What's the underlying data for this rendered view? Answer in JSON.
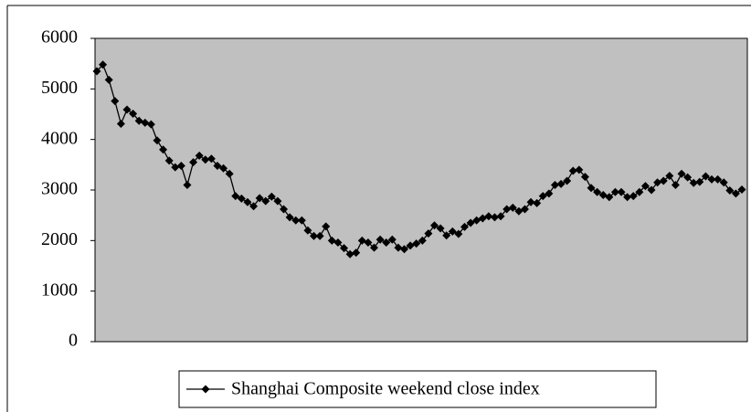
{
  "chart_data": {
    "type": "line",
    "series": [
      {
        "name": "Shanghai Composite weekend close index",
        "color": "#000000",
        "values": [
          5350,
          5480,
          5180,
          4760,
          4310,
          4590,
          4510,
          4370,
          4330,
          4300,
          3980,
          3800,
          3580,
          3450,
          3480,
          3100,
          3550,
          3680,
          3600,
          3620,
          3480,
          3430,
          3320,
          2880,
          2830,
          2760,
          2680,
          2840,
          2780,
          2870,
          2780,
          2620,
          2460,
          2400,
          2400,
          2200,
          2090,
          2090,
          2280,
          2000,
          1960,
          1850,
          1730,
          1760,
          2000,
          1960,
          1860,
          2020,
          1960,
          2020,
          1860,
          1830,
          1900,
          1940,
          2000,
          2140,
          2300,
          2240,
          2100,
          2180,
          2130,
          2270,
          2350,
          2400,
          2440,
          2480,
          2460,
          2480,
          2620,
          2650,
          2580,
          2620,
          2760,
          2740,
          2880,
          2930,
          3100,
          3120,
          3180,
          3380,
          3400,
          3260,
          3040,
          2960,
          2900,
          2860,
          2960,
          2960,
          2860,
          2880,
          2960,
          3080,
          3000,
          3150,
          3180,
          3280,
          3100,
          3320,
          3250,
          3140,
          3160,
          3270,
          3210,
          3210,
          3150,
          2990,
          2930,
          3010
        ]
      }
    ],
    "ylim": [
      0,
      6000
    ],
    "yticks": [
      0,
      1000,
      2000,
      3000,
      4000,
      5000,
      6000
    ],
    "plot_background": "#c0c0c0",
    "legend": "bottom"
  }
}
